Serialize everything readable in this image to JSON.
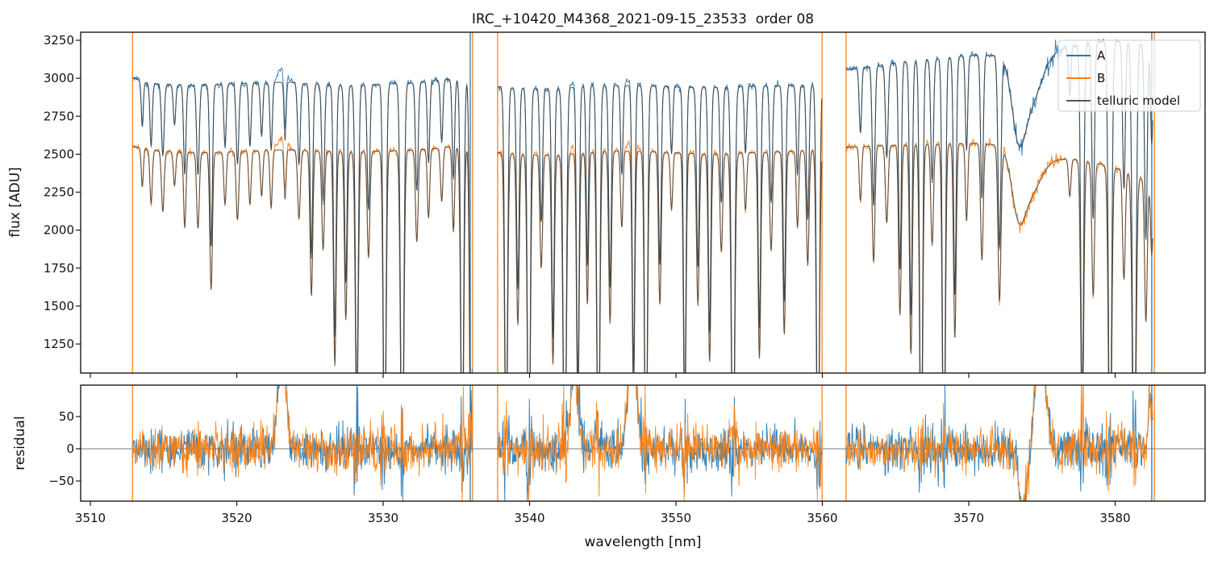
{
  "chart_data": {
    "type": "line",
    "title": "IRC_+10420_M4368_2021-09-15_23533  order 08",
    "xlabel": "wavelength [nm]",
    "ylabel_top": "flux [ADU]",
    "ylabel_bottom": "residual",
    "x_ticks": [
      3510,
      3520,
      3530,
      3540,
      3550,
      3560,
      3570,
      3580
    ],
    "y_ticks_top": [
      1250,
      1500,
      1750,
      2000,
      2250,
      2500,
      2750,
      3000,
      3250
    ],
    "y_ticks_bottom": [
      {
        "v": 50,
        "label": "50"
      },
      {
        "v": 0,
        "label": "0"
      },
      {
        "v": -50,
        "label": "−50"
      }
    ],
    "xlim": [
      3509.3,
      3586.1
    ],
    "ylim_top": [
      1059,
      3303
    ],
    "ylim_bottom": [
      -81,
      99
    ],
    "grid": false,
    "legend": {
      "position": "upper right",
      "entries": [
        {
          "label": "A",
          "color": "#1f77b4"
        },
        {
          "label": "B",
          "color": "#ff7f0e"
        },
        {
          "label": "telluric model",
          "color": "#555555"
        }
      ]
    },
    "series_colors": {
      "A": "#1f77b4",
      "B": "#ff7f0e",
      "model": "#3d3d3d"
    },
    "segments": [
      [
        3512.9,
        3536.08
      ],
      [
        3537.82,
        3559.98
      ],
      [
        3561.62,
        3582.58
      ]
    ],
    "continuum_A": [
      [
        3512.9,
        3005
      ],
      [
        3513.6,
        2975
      ],
      [
        3515,
        2958
      ],
      [
        3517,
        2952
      ],
      [
        3519,
        2962
      ],
      [
        3521,
        2968
      ],
      [
        3523.5,
        2975
      ],
      [
        3525,
        2962
      ],
      [
        3527.5,
        2952
      ],
      [
        3530,
        2962
      ],
      [
        3532.5,
        2972
      ],
      [
        3534.3,
        2995
      ],
      [
        3535.2,
        2990
      ],
      [
        3536.1,
        2985
      ],
      [
        3537.8,
        2945
      ],
      [
        3539.5,
        2935
      ],
      [
        3541.5,
        2930
      ],
      [
        3543.5,
        2945
      ],
      [
        3545.5,
        2955
      ],
      [
        3547.5,
        2950
      ],
      [
        3549.5,
        2945
      ],
      [
        3551.5,
        2938
      ],
      [
        3553.5,
        2942
      ],
      [
        3555.5,
        2948
      ],
      [
        3557.5,
        2952
      ],
      [
        3560,
        2958
      ],
      [
        3561.6,
        3055
      ],
      [
        3563.5,
        3080
      ],
      [
        3566,
        3110
      ],
      [
        3568.5,
        3135
      ],
      [
        3570.5,
        3155
      ],
      [
        3572,
        3148
      ],
      [
        3574.5,
        3160
      ],
      [
        3576.5,
        3195
      ],
      [
        3578,
        3230
      ],
      [
        3579.5,
        3245
      ],
      [
        3581,
        3240
      ],
      [
        3582,
        3220
      ],
      [
        3582.6,
        3205
      ]
    ],
    "continuum_B": [
      [
        3512.9,
        2555
      ],
      [
        3514,
        2528
      ],
      [
        3516,
        2515
      ],
      [
        3518,
        2510
      ],
      [
        3520,
        2518
      ],
      [
        3522,
        2525
      ],
      [
        3523.5,
        2530
      ],
      [
        3525.5,
        2520
      ],
      [
        3528,
        2515
      ],
      [
        3530.5,
        2522
      ],
      [
        3533,
        2532
      ],
      [
        3534.5,
        2548
      ],
      [
        3536.1,
        2550
      ],
      [
        3537.8,
        2510
      ],
      [
        3540,
        2498
      ],
      [
        3542,
        2495
      ],
      [
        3544,
        2512
      ],
      [
        3546,
        2522
      ],
      [
        3548,
        2518
      ],
      [
        3550,
        2510
      ],
      [
        3552,
        2502
      ],
      [
        3554,
        2506
      ],
      [
        3556,
        2512
      ],
      [
        3558,
        2520
      ],
      [
        3560,
        2528
      ],
      [
        3561.6,
        2545
      ],
      [
        3563.5,
        2555
      ],
      [
        3566,
        2562
      ],
      [
        3568.5,
        2568
      ],
      [
        3570.5,
        2572
      ],
      [
        3572,
        2562
      ],
      [
        3574.5,
        2500
      ],
      [
        3576,
        2472
      ],
      [
        3577.5,
        2462
      ],
      [
        3579,
        2435
      ],
      [
        3580.5,
        2395
      ],
      [
        3581.8,
        2340
      ],
      [
        3582.6,
        2290
      ]
    ],
    "telluric_lines": [
      [
        3513.55,
        0.9,
        0.07
      ],
      [
        3514.15,
        0.86,
        0.08
      ],
      [
        3514.95,
        0.84,
        0.09
      ],
      [
        3515.75,
        0.91,
        0.08
      ],
      [
        3516.45,
        0.8,
        0.08
      ],
      [
        3517.35,
        0.8,
        0.09
      ],
      [
        3518.25,
        0.64,
        0.09
      ],
      [
        3519.2,
        0.86,
        0.08
      ],
      [
        3520.05,
        0.82,
        0.09
      ],
      [
        3520.9,
        0.86,
        0.08
      ],
      [
        3521.7,
        0.88,
        0.08
      ],
      [
        3522.35,
        0.85,
        0.08
      ],
      [
        3523.3,
        0.87,
        0.07
      ],
      [
        3524.25,
        0.82,
        0.09
      ],
      [
        3525.1,
        0.62,
        0.09
      ],
      [
        3525.9,
        0.74,
        0.09
      ],
      [
        3526.7,
        0.44,
        0.09
      ],
      [
        3527.45,
        0.56,
        0.09
      ],
      [
        3528.2,
        0.3,
        0.1
      ],
      [
        3529.0,
        0.72,
        0.09
      ],
      [
        3530.1,
        0.16,
        0.1
      ],
      [
        3531.3,
        0.08,
        0.11
      ],
      [
        3532.3,
        0.76,
        0.09
      ],
      [
        3533.1,
        0.82,
        0.08
      ],
      [
        3534.0,
        0.86,
        0.08
      ],
      [
        3534.8,
        0.78,
        0.08
      ],
      [
        3535.4,
        0.14,
        0.1
      ],
      [
        3536.0,
        0.1,
        0.09
      ],
      [
        3538.4,
        0.2,
        0.1
      ],
      [
        3539.2,
        0.55,
        0.09
      ],
      [
        3539.95,
        0.1,
        0.1
      ],
      [
        3540.8,
        0.7,
        0.09
      ],
      [
        3541.6,
        0.45,
        0.09
      ],
      [
        3542.4,
        0.1,
        0.11
      ],
      [
        3543.3,
        0.32,
        0.09
      ],
      [
        3543.95,
        0.6,
        0.08
      ],
      [
        3544.7,
        0.1,
        0.1
      ],
      [
        3545.5,
        0.55,
        0.09
      ],
      [
        3546.3,
        0.8,
        0.08
      ],
      [
        3547.1,
        0.36,
        0.09
      ],
      [
        3547.95,
        0.1,
        0.1
      ],
      [
        3548.9,
        0.6,
        0.09
      ],
      [
        3549.7,
        0.85,
        0.08
      ],
      [
        3550.6,
        0.28,
        0.09
      ],
      [
        3551.5,
        0.6,
        0.09
      ],
      [
        3552.3,
        0.45,
        0.09
      ],
      [
        3553.1,
        0.74,
        0.09
      ],
      [
        3553.9,
        0.08,
        0.11
      ],
      [
        3554.75,
        0.85,
        0.08
      ],
      [
        3555.7,
        0.46,
        0.09
      ],
      [
        3556.5,
        0.74,
        0.09
      ],
      [
        3557.4,
        0.52,
        0.09
      ],
      [
        3558.3,
        0.8,
        0.08
      ],
      [
        3559.0,
        0.7,
        0.09
      ],
      [
        3559.7,
        0.1,
        0.1
      ],
      [
        3562.6,
        0.86,
        0.08
      ],
      [
        3563.5,
        0.7,
        0.09
      ],
      [
        3564.4,
        0.8,
        0.09
      ],
      [
        3565.3,
        0.56,
        0.09
      ],
      [
        3566.05,
        0.46,
        0.09
      ],
      [
        3566.75,
        0.1,
        0.1
      ],
      [
        3567.5,
        0.74,
        0.09
      ],
      [
        3568.3,
        0.1,
        0.1
      ],
      [
        3569.05,
        0.5,
        0.09
      ],
      [
        3569.85,
        0.8,
        0.08
      ],
      [
        3570.9,
        0.7,
        0.09
      ],
      [
        3572.1,
        0.6,
        0.1
      ],
      [
        3573.4,
        0.86,
        0.45
      ],
      [
        3574.2,
        0.9,
        0.75
      ],
      [
        3576.9,
        0.9,
        0.08
      ],
      [
        3577.75,
        0.26,
        0.1
      ],
      [
        3578.5,
        0.64,
        0.09
      ],
      [
        3579.65,
        0.1,
        0.11
      ],
      [
        3580.6,
        0.7,
        0.09
      ],
      [
        3581.3,
        0.05,
        0.12
      ],
      [
        3582.1,
        0.6,
        0.09
      ],
      [
        3582.5,
        0.8,
        0.08
      ]
    ],
    "data_bumps": [
      [
        3523.1,
        95,
        80,
        0.3
      ],
      [
        3543.1,
        40,
        50,
        0.25
      ],
      [
        3547.0,
        55,
        90,
        0.3
      ]
    ],
    "residual_features": [
      [
        3523.1,
        150,
        0.28
      ],
      [
        3543.1,
        150,
        0.25
      ],
      [
        3547.0,
        160,
        0.28
      ],
      [
        3573.7,
        -90,
        0.3
      ],
      [
        3574.9,
        190,
        0.32
      ],
      [
        3582.4,
        80,
        0.15
      ]
    ],
    "edge_spikes": [
      {
        "x": 3512.88,
        "series": "B"
      },
      {
        "x": 3535.95,
        "series": "A"
      },
      {
        "x": 3536.1,
        "series": "B"
      },
      {
        "x": 3537.82,
        "series": "B"
      },
      {
        "x": 3559.98,
        "series": "B"
      },
      {
        "x": 3561.62,
        "series": "B"
      },
      {
        "x": 3582.5,
        "series": "A"
      },
      {
        "x": 3582.68,
        "series": "B"
      }
    ],
    "noise": {
      "flux_sigma": 11,
      "residual_sigma": 17,
      "bandhead_window": [
        3572.3,
        3576.3
      ],
      "bandhead_boost": 2.6,
      "deep_line_boost": 2.0
    }
  }
}
